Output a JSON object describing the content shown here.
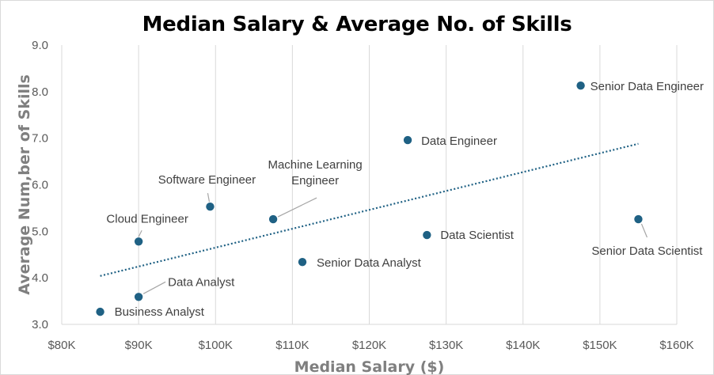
{
  "chart_data": {
    "type": "scatter",
    "title": "Median Salary & Average No. of Skills",
    "xlabel": "Median Salary ($)",
    "ylabel": "Average Num,ber of Skills",
    "xlim": [
      80000,
      160000
    ],
    "ylim": [
      3.0,
      9.0
    ],
    "x_ticks": [
      80000,
      90000,
      100000,
      110000,
      120000,
      130000,
      140000,
      150000,
      160000
    ],
    "x_tick_labels": [
      "$80K",
      "$90K",
      "$100K",
      "$110K",
      "$120K",
      "$130K",
      "$140K",
      "$150K",
      "$160K"
    ],
    "y_ticks": [
      3.0,
      4.0,
      5.0,
      6.0,
      7.0,
      8.0,
      9.0
    ],
    "y_tick_labels": [
      "3.0",
      "4.0",
      "5.0",
      "6.0",
      "7.0",
      "8.0",
      "9.0"
    ],
    "grid": "vertical",
    "legend": "none",
    "marker_color": "#1f6184",
    "trendline": {
      "type": "linear",
      "style": "dotted",
      "color": "#1f6184",
      "x": [
        85000,
        155000
      ],
      "y": [
        4.04,
        6.88
      ]
    },
    "points": [
      {
        "label": "Business Analyst",
        "x": 85000,
        "y": 3.27
      },
      {
        "label": "Data Analyst",
        "x": 90000,
        "y": 3.59
      },
      {
        "label": "Cloud Engineer",
        "x": 90000,
        "y": 4.78
      },
      {
        "label": "Software Engineer",
        "x": 99300,
        "y": 5.53
      },
      {
        "label": "Machine Learning Engineer",
        "label_lines": [
          "Machine Learning",
          "Engineer"
        ],
        "x": 107500,
        "y": 5.26
      },
      {
        "label": "Senior Data Analyst",
        "x": 111300,
        "y": 4.34
      },
      {
        "label": "Data Engineer",
        "x": 125000,
        "y": 6.96
      },
      {
        "label": "Data Scientist",
        "x": 127500,
        "y": 4.92
      },
      {
        "label": "Senior Data Engineer",
        "x": 147500,
        "y": 8.13
      },
      {
        "label": "Senior Data Scientist",
        "x": 155000,
        "y": 5.26
      }
    ]
  }
}
